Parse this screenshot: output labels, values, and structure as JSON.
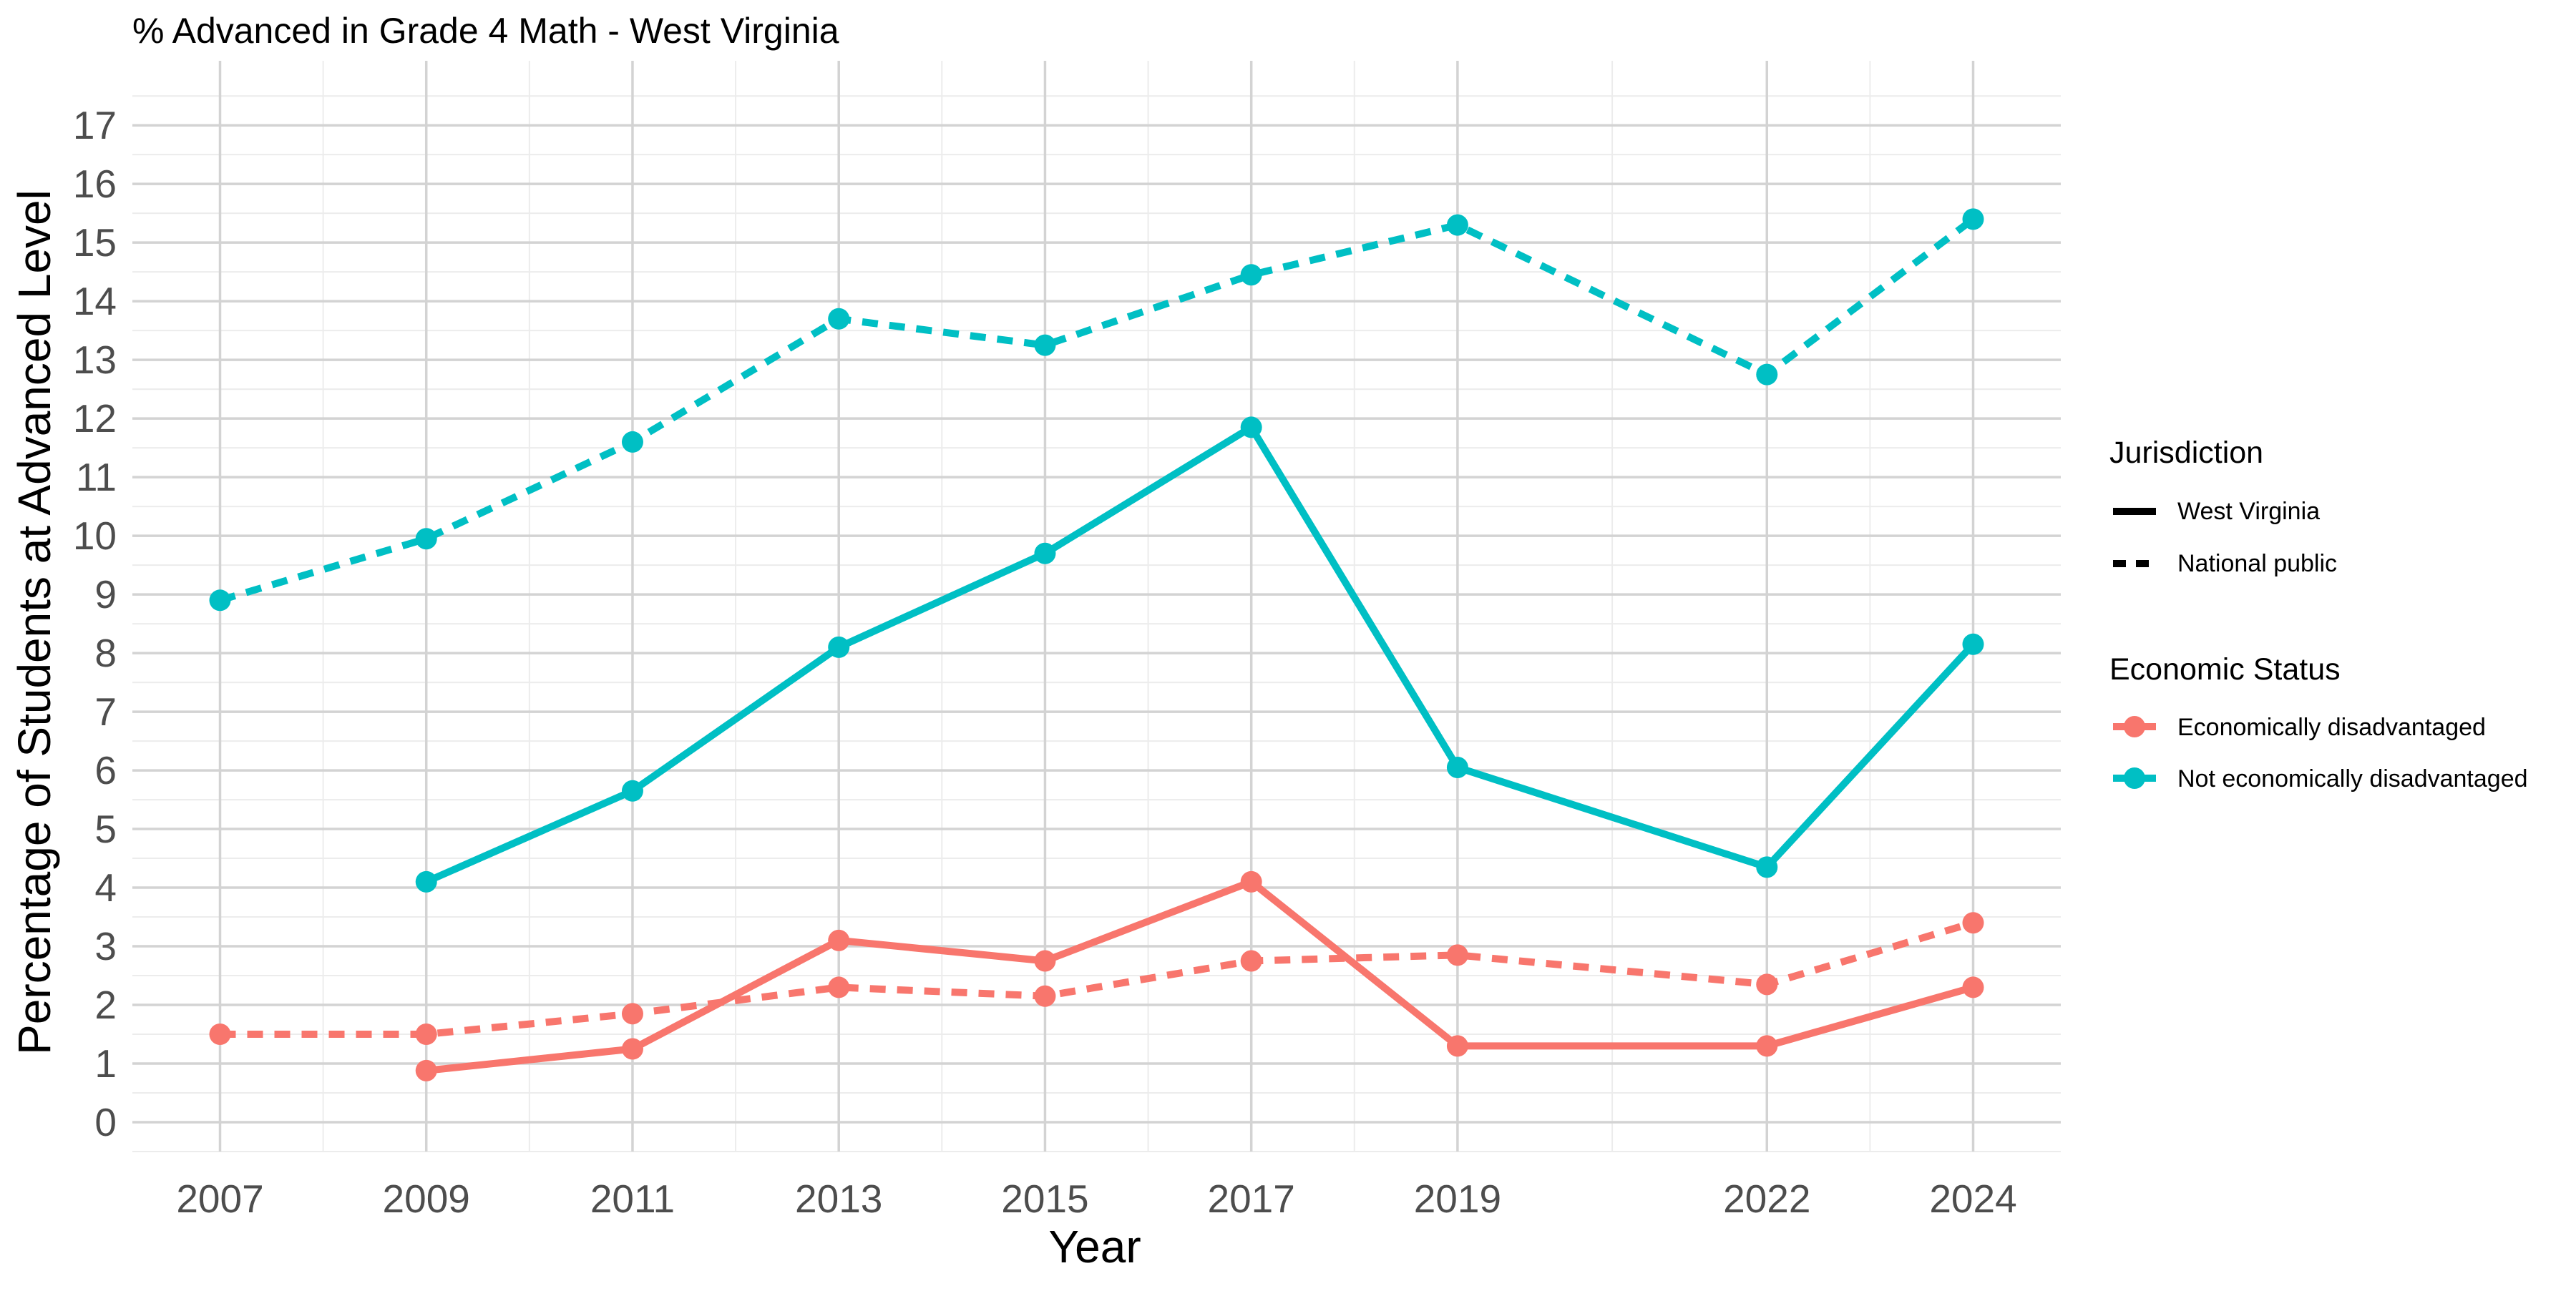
{
  "chart_data": {
    "type": "line",
    "title": "% Advanced in Grade 4 Math - West Virginia",
    "xlabel": "Year",
    "ylabel": "Percentage of Students at Advanced Level",
    "x_ticks": [
      2007,
      2009,
      2011,
      2013,
      2015,
      2017,
      2019,
      2022,
      2024
    ],
    "x_minor_ticks": [
      2008,
      2010,
      2012,
      2014,
      2016,
      2018,
      2020.5,
      2023
    ],
    "xlim": [
      2006.15,
      2024.85
    ],
    "y_ticks": [
      0,
      1,
      2,
      3,
      4,
      5,
      6,
      7,
      8,
      9,
      10,
      11,
      12,
      13,
      14,
      15,
      16,
      17
    ],
    "ylim": [
      -0.5,
      18.1
    ],
    "grid": true,
    "legend_placement": "right",
    "series": [
      {
        "name": "West Virginia / Not economically disadvantaged",
        "jurisdiction": "West Virginia",
        "economic_status": "Not economically disadvantaged",
        "color": "#00BFC4",
        "linetype": "solid",
        "x": [
          2009,
          2011,
          2013,
          2015,
          2017,
          2019,
          2022,
          2024
        ],
        "y": [
          4.1,
          5.65,
          8.1,
          9.7,
          11.85,
          6.05,
          4.35,
          8.15
        ]
      },
      {
        "name": "National public / Not economically disadvantaged",
        "jurisdiction": "National public",
        "economic_status": "Not economically disadvantaged",
        "color": "#00BFC4",
        "linetype": "dashed",
        "x": [
          2007,
          2009,
          2011,
          2013,
          2015,
          2017,
          2019,
          2022,
          2024
        ],
        "y": [
          8.9,
          9.95,
          11.6,
          13.7,
          13.25,
          14.45,
          15.3,
          12.75,
          15.4
        ]
      },
      {
        "name": "West Virginia / Economically disadvantaged",
        "jurisdiction": "West Virginia",
        "economic_status": "Economically disadvantaged",
        "color": "#F8766D",
        "linetype": "solid",
        "x": [
          2009,
          2011,
          2013,
          2015,
          2017,
          2019,
          2022,
          2024
        ],
        "y": [
          0.88,
          1.25,
          3.1,
          2.75,
          4.1,
          1.3,
          1.3,
          2.3
        ]
      },
      {
        "name": "National public / Economically disadvantaged",
        "jurisdiction": "National public",
        "economic_status": "Economically disadvantaged",
        "color": "#F8766D",
        "linetype": "dashed",
        "x": [
          2007,
          2009,
          2011,
          2013,
          2015,
          2017,
          2019,
          2022,
          2024
        ],
        "y": [
          1.5,
          1.5,
          1.85,
          2.3,
          2.15,
          2.75,
          2.85,
          2.35,
          3.4
        ]
      }
    ],
    "legend": {
      "jurisdiction_title": "Jurisdiction",
      "jurisdiction_items": [
        {
          "label": "West Virginia",
          "linetype": "solid"
        },
        {
          "label": "National public",
          "linetype": "dashed"
        }
      ],
      "economic_title": "Economic Status",
      "economic_items": [
        {
          "label": "Economically disadvantaged",
          "color": "#F8766D"
        },
        {
          "label": "Not economically disadvantaged",
          "color": "#00BFC4"
        }
      ]
    }
  }
}
